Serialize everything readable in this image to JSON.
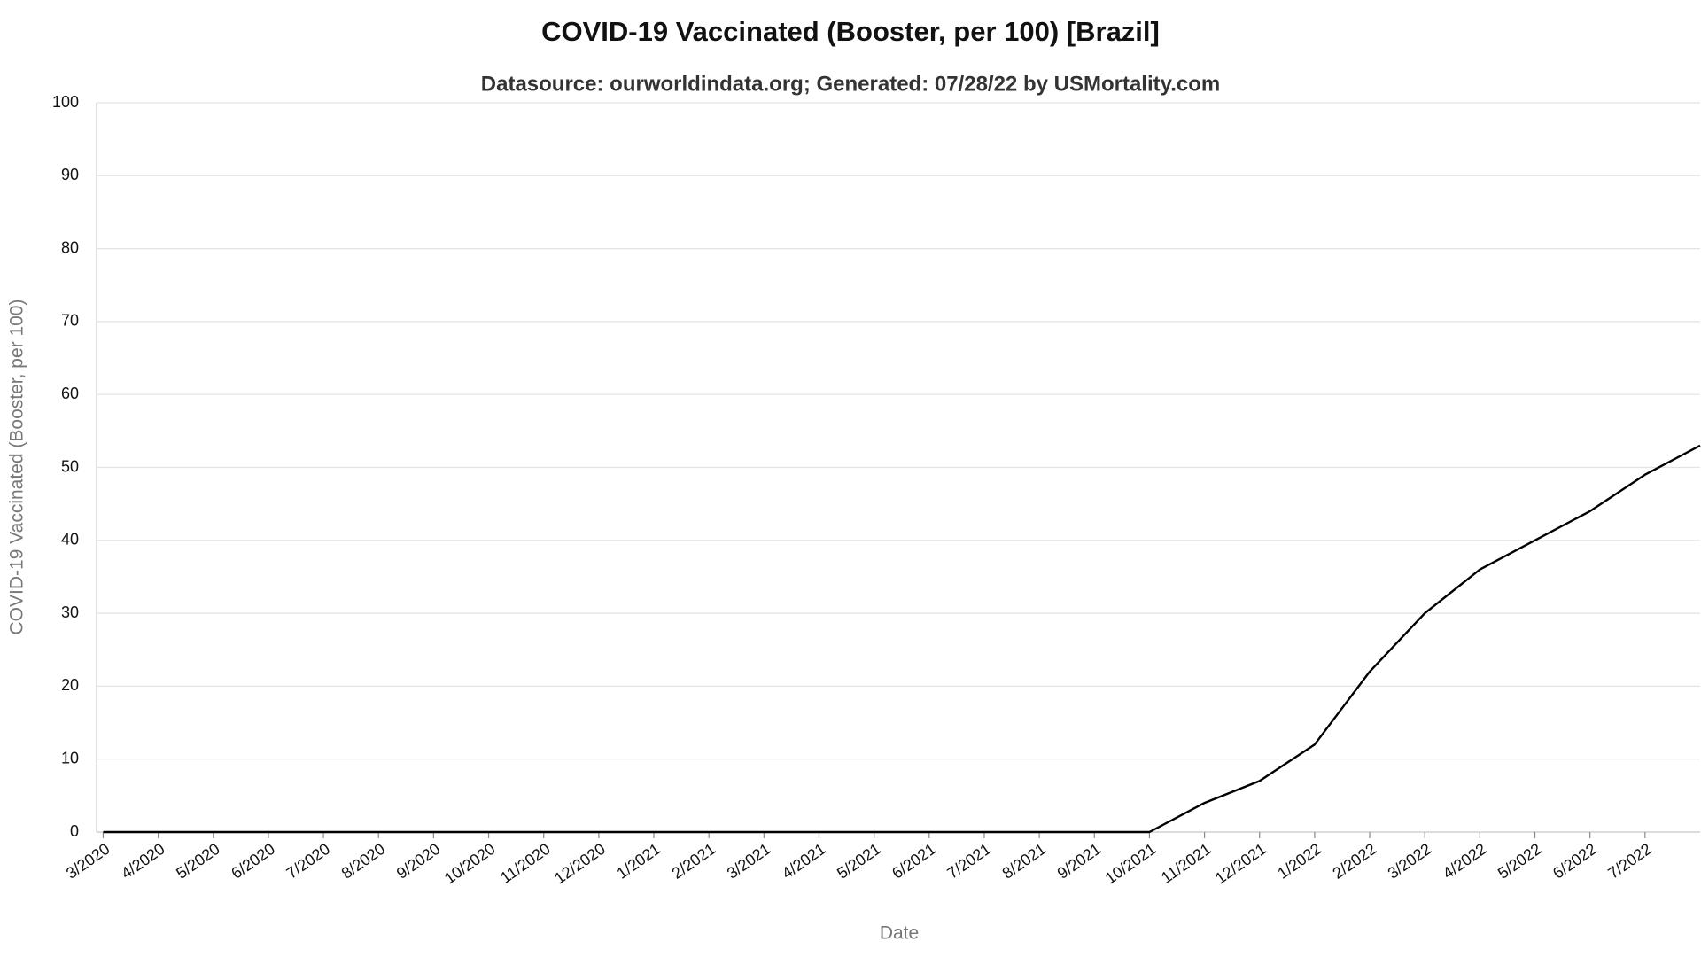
{
  "chart_data": {
    "type": "line",
    "title": "COVID-19 Vaccinated (Booster, per 100) [Brazil]",
    "subtitle": "Datasource: ourworldindata.org; Generated: 07/28/22 by USMortality.com",
    "x_label": "Date",
    "y_label": "COVID-19 Vaccinated (Booster, per 100)",
    "categories": [
      "3/2020",
      "4/2020",
      "5/2020",
      "6/2020",
      "7/2020",
      "8/2020",
      "9/2020",
      "10/2020",
      "11/2020",
      "12/2020",
      "1/2021",
      "2/2021",
      "3/2021",
      "4/2021",
      "5/2021",
      "6/2021",
      "7/2021",
      "8/2021",
      "9/2021",
      "10/2021",
      "11/2021",
      "12/2021",
      "1/2022",
      "2/2022",
      "3/2022",
      "4/2022",
      "5/2022",
      "6/2022",
      "7/2022",
      null
    ],
    "values": [
      0,
      0,
      0,
      0,
      0,
      0,
      0,
      0,
      0,
      0,
      0,
      0,
      0,
      0,
      0,
      0,
      0,
      0,
      0,
      0,
      4,
      7,
      12,
      22,
      30,
      36,
      40,
      44,
      49,
      53
    ],
    "color": "#000000",
    "ylim": [
      0,
      100
    ],
    "yticks": [
      0,
      10,
      20,
      30,
      40,
      50,
      60,
      70,
      80,
      90,
      100
    ],
    "grid": true
  }
}
